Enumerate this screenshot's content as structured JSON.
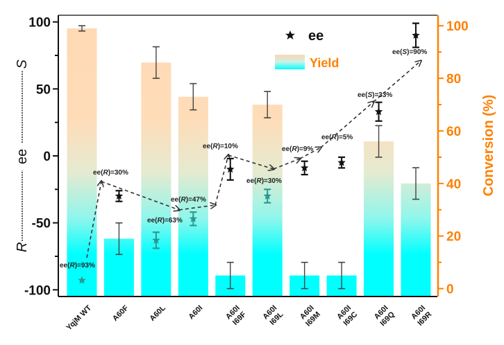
{
  "chart_data": {
    "type": "bar",
    "title": "",
    "categories": [
      [
        "YqjM WT"
      ],
      [
        "A60F"
      ],
      [
        "A60L"
      ],
      [
        "A60I"
      ],
      [
        "A60I",
        "I69F"
      ],
      [
        "A60I",
        "I69L"
      ],
      [
        "A60I",
        "I69M"
      ],
      [
        "A60I",
        "I69C"
      ],
      [
        "A60I",
        "I69Q"
      ],
      [
        "A60I",
        "I69R"
      ]
    ],
    "series": [
      {
        "name": "Yield",
        "axis": "right",
        "kind": "bar",
        "values": [
          99,
          19,
          86,
          73,
          5,
          70,
          5,
          5,
          56,
          40
        ],
        "errors": [
          1,
          6,
          6,
          5,
          5,
          5,
          5,
          5,
          6,
          6
        ]
      },
      {
        "name": "ee",
        "axis": "left",
        "kind": "scatter",
        "marker": "star",
        "values": [
          -93,
          -30,
          -63,
          -47,
          -10,
          -30,
          -9,
          -5,
          33,
          90
        ],
        "errors": [
          0,
          4,
          6,
          5,
          8,
          5,
          5,
          4,
          7,
          9
        ]
      }
    ],
    "annotations": [
      {
        "category": 0,
        "text_pre": "ee(",
        "text_it": "R",
        "text_post": ")=93%"
      },
      {
        "category": 1,
        "text_pre": "ee(",
        "text_it": "R",
        "text_post": ")=30%"
      },
      {
        "category": 2,
        "text_pre": "ee(",
        "text_it": "R",
        "text_post": ")=63%"
      },
      {
        "category": 3,
        "text_pre": "ee(",
        "text_it": "R",
        "text_post": ")=47%"
      },
      {
        "category": 4,
        "text_pre": "ee(",
        "text_it": "R",
        "text_post": ")=10%"
      },
      {
        "category": 5,
        "text_pre": "ee(",
        "text_it": "R",
        "text_post": ")=30%"
      },
      {
        "category": 6,
        "text_pre": "ee(",
        "text_it": "R",
        "text_post": ")=9%"
      },
      {
        "category": 7,
        "text_pre": "ee(",
        "text_it": "R",
        "text_post": ")=5%"
      },
      {
        "category": 8,
        "text_pre": "ee(",
        "text_it": "S",
        "text_post": ")=33%"
      },
      {
        "category": 9,
        "text_pre": "ee(",
        "text_it": "S",
        "text_post": ")=90%"
      }
    ],
    "left_axis": {
      "label": "R--------ee--------S",
      "label_parts": [
        "R",
        "ee",
        "S"
      ],
      "ylim": [
        -105,
        105
      ],
      "ticks": [
        -100,
        -50,
        0,
        50,
        100
      ],
      "tick_labels": [
        "-100",
        "-50",
        "0",
        "50",
        "100"
      ]
    },
    "right_axis": {
      "label": "Conversion (%)",
      "ylim": [
        -3,
        104
      ],
      "ticks": [
        0,
        20,
        40,
        60,
        80,
        100
      ],
      "tick_labels": [
        "0",
        "20",
        "40",
        "60",
        "80",
        "100"
      ]
    },
    "legend": {
      "position": "top-right",
      "entries": [
        {
          "label": "ee",
          "symbol": "star"
        },
        {
          "label": "Yield",
          "symbol": "gradient-bar"
        }
      ]
    },
    "colors": {
      "axis_right": "#ff8000",
      "bar_top": "#ffd9b0",
      "bar_bottom": "#00ffff",
      "ee_marker": "#111111",
      "ee_marker_on_cyan": "#2a9a90"
    },
    "grid": false
  }
}
